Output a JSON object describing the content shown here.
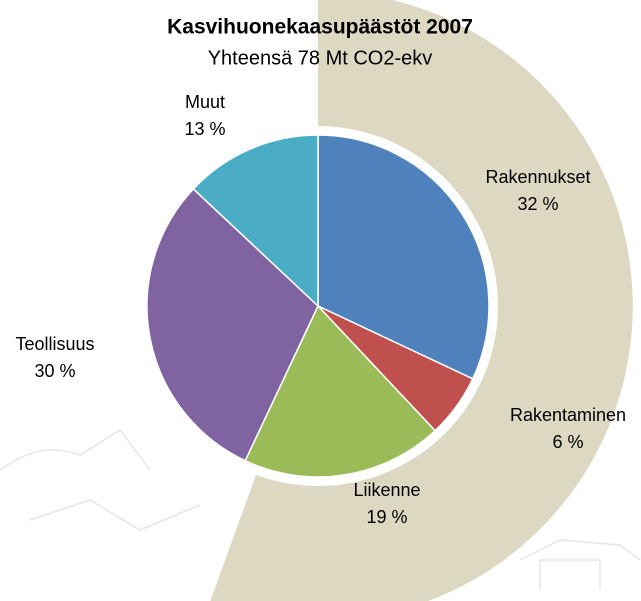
{
  "chart_data": {
    "type": "pie",
    "title": "Kasvihuonekaasupäästöt 2007",
    "subtitle": "Yhteensä 78 Mt CO2-ekv",
    "categories": [
      "Rakennukset",
      "Rakentaminen",
      "Liikenne",
      "Teollisuus",
      "Muut"
    ],
    "values": [
      32,
      6,
      19,
      30,
      13
    ],
    "value_labels": [
      "32 %",
      "6 %",
      "19 %",
      "30 %",
      "13 %"
    ],
    "colors": [
      "#4f81bd",
      "#c0504d",
      "#9bbb59",
      "#8064a2",
      "#4bacc6"
    ]
  }
}
